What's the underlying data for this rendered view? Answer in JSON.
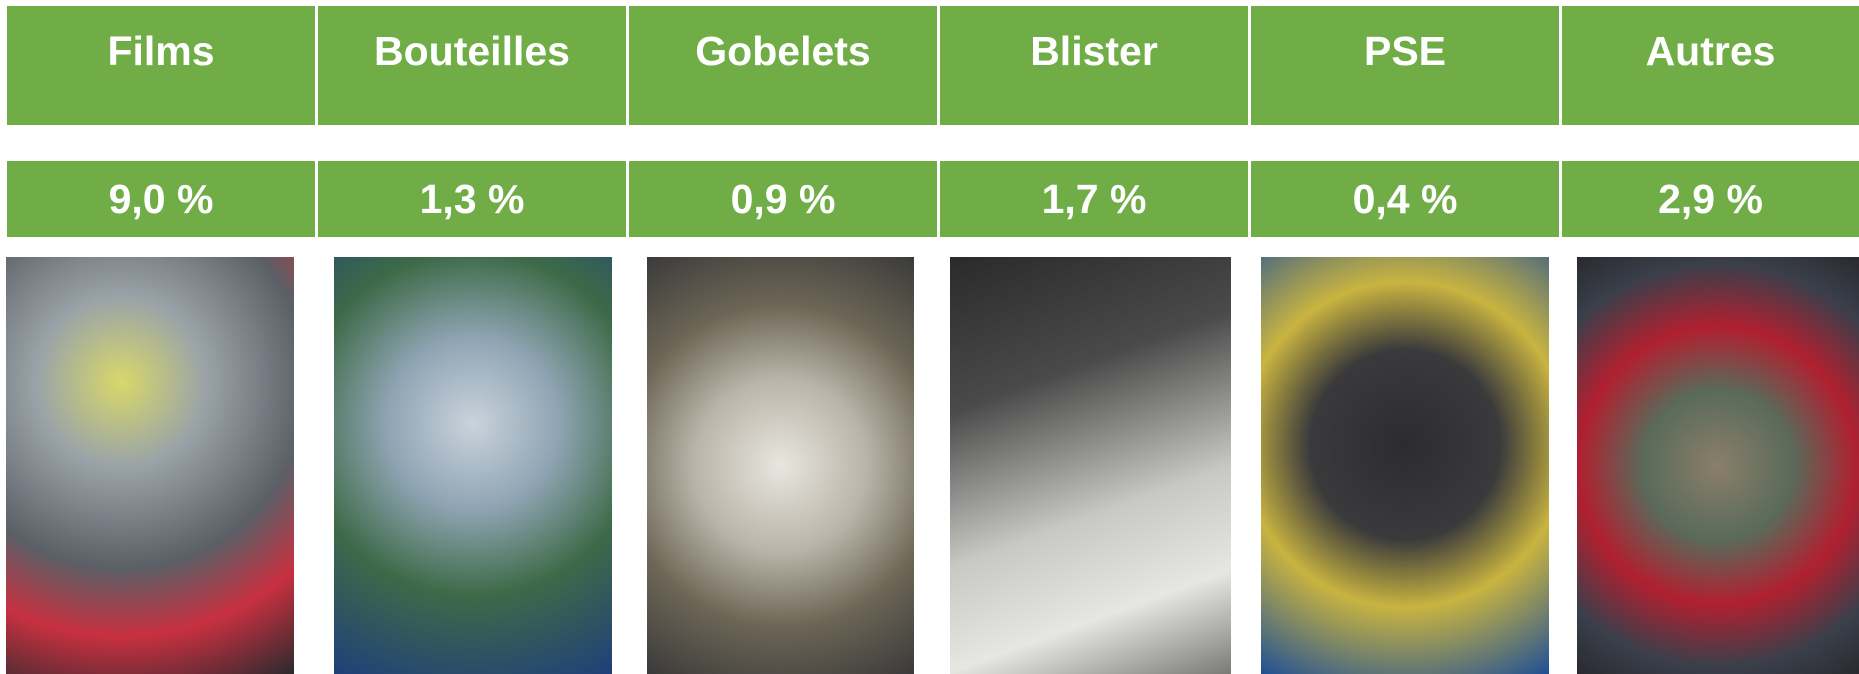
{
  "columns": [
    {
      "label": "Films",
      "value": "9,0 %"
    },
    {
      "label": "Bouteilles",
      "value": "1,3 %"
    },
    {
      "label": "Gobelets",
      "value": "0,9 %"
    },
    {
      "label": "Blister",
      "value": "1,7 %"
    },
    {
      "label": "PSE",
      "value": "0,4 %"
    },
    {
      "label": "Autres",
      "value": "2,9 %"
    }
  ]
}
